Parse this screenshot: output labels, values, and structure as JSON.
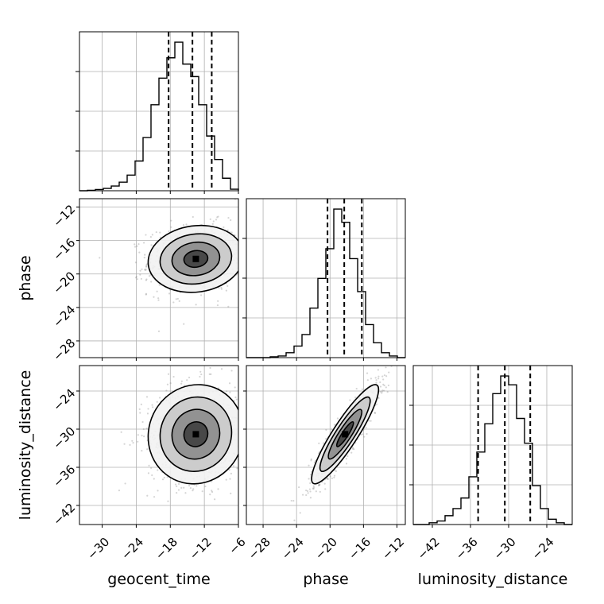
{
  "chart_data": {
    "type": "corner",
    "parameters": [
      "geocent_time",
      "phase",
      "luminosity_distance"
    ],
    "axis_ranges": {
      "geocent_time": [
        -34,
        -6
      ],
      "phase": [
        -30,
        -11
      ],
      "luminosity_distance": [
        -45,
        -20
      ]
    },
    "ticks": {
      "geocent_time": [
        -30,
        -24,
        -18,
        -12,
        -6
      ],
      "phase": [
        -28,
        -24,
        -20,
        -16,
        -12
      ],
      "luminosity_distance": [
        -42,
        -36,
        -30,
        -24
      ]
    },
    "tick_labels": {
      "geocent_time": [
        "−30",
        "−24",
        "−18",
        "−12",
        "−6"
      ],
      "phase": [
        "−28",
        "−24",
        "−20",
        "−16",
        "−12"
      ],
      "luminosity_distance": [
        "−42",
        "−36",
        "−30",
        "−24"
      ]
    },
    "grid": true,
    "histograms": [
      {
        "param": "geocent_time",
        "bins": [
          -34,
          -32.6,
          -31.2,
          -29.8,
          -28.4,
          -27,
          -25.6,
          -24.2,
          -22.8,
          -21.4,
          -20,
          -18.6,
          -17.2,
          -15.8,
          -14.4,
          -13,
          -11.6,
          -10.2,
          -8.8,
          -7.4,
          -6
        ],
        "counts": [
          0,
          0.3,
          0.8,
          1.5,
          3,
          5.5,
          10,
          19,
          34,
          55,
          72,
          85,
          95,
          81,
          73,
          55,
          35,
          20,
          8,
          1
        ],
        "quantiles": [
          -18.3,
          -14.1,
          -10.7
        ]
      },
      {
        "param": "phase",
        "bins": [
          -30,
          -29.05,
          -28.1,
          -27.15,
          -26.2,
          -25.25,
          -24.3,
          -23.35,
          -22.4,
          -21.45,
          -20.5,
          -19.55,
          -18.6,
          -17.65,
          -16.7,
          -15.75,
          -14.8,
          -13.85,
          -12.9,
          -11.95,
          -11
        ],
        "counts": [
          0,
          0,
          0,
          0.5,
          1,
          3,
          7,
          14,
          30,
          48,
          66,
          90,
          82,
          60,
          40,
          20,
          9,
          3,
          1,
          0
        ],
        "quantiles": [
          -20.3,
          -18.3,
          -16.2
        ]
      },
      {
        "param": "luminosity_distance",
        "bins": [
          -45,
          -43.75,
          -42.5,
          -41.25,
          -40,
          -38.75,
          -37.5,
          -36.25,
          -35,
          -33.75,
          -32.5,
          -31.25,
          -30,
          -28.75,
          -27.5,
          -26.25,
          -25,
          -23.75,
          -22.5,
          -21.25,
          -20
        ],
        "counts": [
          0,
          0,
          1,
          2,
          5,
          9,
          15,
          27,
          41,
          57,
          74,
          84,
          79,
          60,
          46,
          22,
          9,
          3,
          1,
          0
        ],
        "quantiles": [
          -34.8,
          -30.6,
          -26.6
        ]
      }
    ],
    "joint_panels": [
      {
        "x": "geocent_time",
        "y": "phase",
        "mean": [
          -13.5,
          -18.2
        ],
        "sd": [
          4.2,
          2.0
        ],
        "corr": 0.1,
        "contour_levels": [
          "0.5 sigma",
          "1 sigma",
          "1.5 sigma",
          "2 sigma"
        ]
      },
      {
        "x": "geocent_time",
        "y": "luminosity_distance",
        "mean": [
          -13.5,
          -30.8
        ],
        "sd": [
          4.2,
          3.9
        ],
        "corr": 0.05,
        "contour_levels": [
          "0.5 sigma",
          "1 sigma",
          "1.5 sigma",
          "2 sigma"
        ]
      },
      {
        "x": "phase",
        "y": "luminosity_distance",
        "mean": [
          -18.2,
          -30.8
        ],
        "sd": [
          2.0,
          3.9
        ],
        "corr": 0.9,
        "contour_levels": [
          "0.5 sigma",
          "1 sigma",
          "1.5 sigma",
          "2 sigma"
        ]
      }
    ],
    "colors": {
      "line": "#000000",
      "grid": "#b0b0b0",
      "points": "#888888"
    },
    "title": "",
    "axis_labels": {
      "geocent_time": "geocent_time",
      "phase": "phase",
      "luminosity_distance": "luminosity_distance"
    }
  }
}
